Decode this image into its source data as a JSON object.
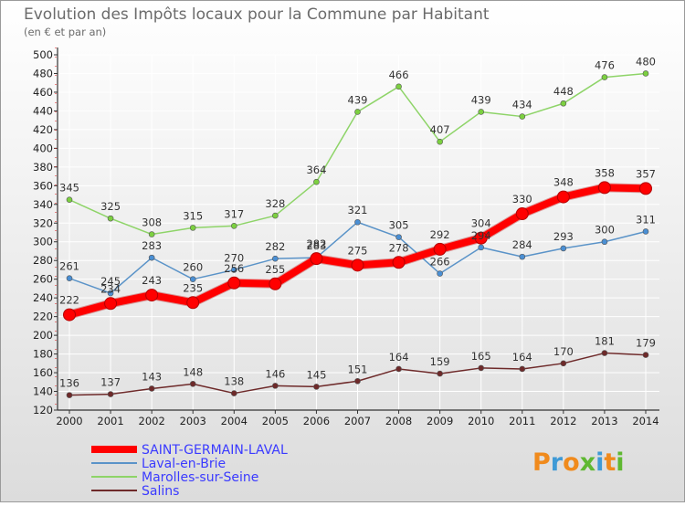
{
  "title": "Evolution des Impôts locaux pour la Commune par Habitant",
  "subtitle": "(en € et par an)",
  "brand": {
    "letters": [
      "P",
      "r",
      "o",
      "x",
      "i",
      "t",
      "i"
    ],
    "colors": [
      "#f08a1c",
      "#3f9ad6",
      "#f08a1c",
      "#5fb832",
      "#3f9ad6",
      "#f08a1c",
      "#5fb832"
    ]
  },
  "colors": {
    "background_top": "#ffffff",
    "background_bottom": "#dcdcdc",
    "grid": "#ffffff",
    "axis": "#333333",
    "title": "#6b6b6b"
  },
  "chart_data": {
    "type": "line",
    "x": [
      2000,
      2001,
      2002,
      2003,
      2004,
      2005,
      2006,
      2007,
      2008,
      2009,
      2010,
      2011,
      2012,
      2013,
      2014
    ],
    "ylim": [
      120,
      500
    ],
    "yticks": [
      120,
      140,
      160,
      180,
      200,
      220,
      240,
      260,
      280,
      300,
      320,
      340,
      360,
      380,
      400,
      420,
      440,
      460,
      480,
      500
    ],
    "grid": true,
    "legend_position": "bottom-left",
    "series": [
      {
        "name": "SAINT-GERMAIN-LAVAL",
        "color": "#ff0000",
        "marker_color": "#ff0000",
        "width": 8,
        "values": [
          222,
          234,
          243,
          235,
          256,
          255,
          282,
          275,
          278,
          292,
          304,
          330,
          348,
          358,
          357
        ]
      },
      {
        "name": "Laval-en-Brie",
        "color": "#5a93c8",
        "marker_color": "#4a8fd4",
        "width": 1.5,
        "values": [
          261,
          245,
          283,
          260,
          270,
          282,
          283,
          321,
          305,
          266,
          294,
          284,
          293,
          300,
          311
        ]
      },
      {
        "name": "Marolles-sur-Seine",
        "color": "#8ed468",
        "marker_color": "#7cd040",
        "width": 1.5,
        "values": [
          345,
          325,
          308,
          315,
          317,
          328,
          364,
          439,
          466,
          407,
          439,
          434,
          448,
          476,
          480
        ]
      },
      {
        "name": "Salins",
        "color": "#6e2a2a",
        "marker_color": "#6e2a2a",
        "width": 1.5,
        "values": [
          136,
          137,
          143,
          148,
          138,
          146,
          145,
          151,
          164,
          159,
          165,
          164,
          170,
          181,
          179
        ]
      }
    ]
  }
}
